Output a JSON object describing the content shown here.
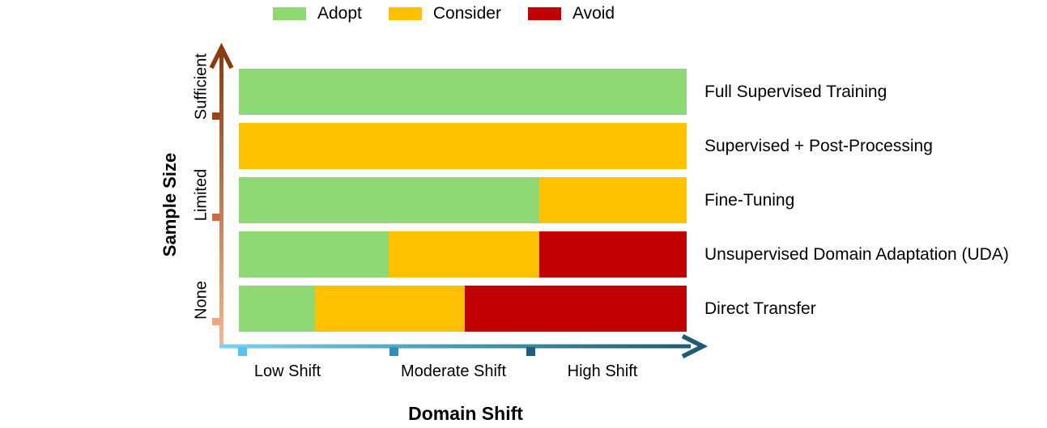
{
  "legend": {
    "items": [
      {
        "label": "Adopt",
        "color": "#8ED973"
      },
      {
        "label": "Consider",
        "color": "#FFC000"
      },
      {
        "label": "Avoid",
        "color": "#C00000"
      }
    ]
  },
  "chart_data": {
    "type": "bar",
    "variant": "horizontal-stacked-qualitative",
    "title": "",
    "xlabel": "Domain Shift",
    "ylabel": "Sample Size",
    "x_tick_labels": [
      "Low Shift",
      "Moderate Shift",
      "High Shift"
    ],
    "y_tick_labels": [
      "Sufficient",
      "Limited",
      "None"
    ],
    "legend_position": "top",
    "legend_entries": [
      "Adopt",
      "Consider",
      "Avoid"
    ],
    "categories": [
      "Full Supervised Training",
      "Supervised + Post-Processing",
      "Fine-Tuning",
      "Unsupervised Domain Adaptation (UDA)",
      "Direct Transfer"
    ],
    "rows": [
      {
        "label": "Full Supervised Training",
        "segments": [
          {
            "rating": "Adopt",
            "fraction": 1.0
          }
        ]
      },
      {
        "label": "Supervised + Post-Processing",
        "segments": [
          {
            "rating": "Consider",
            "fraction": 1.0
          }
        ]
      },
      {
        "label": "Fine-Tuning",
        "segments": [
          {
            "rating": "Adopt",
            "fraction": 0.67
          },
          {
            "rating": "Consider",
            "fraction": 0.33
          }
        ]
      },
      {
        "label": "Unsupervised Domain Adaptation (UDA)",
        "segments": [
          {
            "rating": "Adopt",
            "fraction": 0.335
          },
          {
            "rating": "Consider",
            "fraction": 0.335
          },
          {
            "rating": "Avoid",
            "fraction": 0.33
          }
        ]
      },
      {
        "label": "Direct Transfer",
        "segments": [
          {
            "rating": "Adopt",
            "fraction": 0.17
          },
          {
            "rating": "Consider",
            "fraction": 0.335
          },
          {
            "rating": "Avoid",
            "fraction": 0.495
          }
        ]
      }
    ],
    "rating_colors": {
      "Adopt": "#8ED973",
      "Consider": "#FFC000",
      "Avoid": "#C00000"
    }
  },
  "axes": {
    "y_gradient": {
      "bottom": "#F4B795",
      "top": "#8B3A10"
    },
    "y_arrow_color": "#8B3A10",
    "y_tick_colors": [
      "#9C4517",
      "#C76F42",
      "#EFA67E"
    ],
    "x_gradient": {
      "left": "#7BD2F4",
      "right": "#1D5C74"
    },
    "x_arrow_color": "#1D5C74",
    "x_tick_colors": [
      "#55C4EE",
      "#2E8FB8",
      "#1A607C"
    ]
  }
}
